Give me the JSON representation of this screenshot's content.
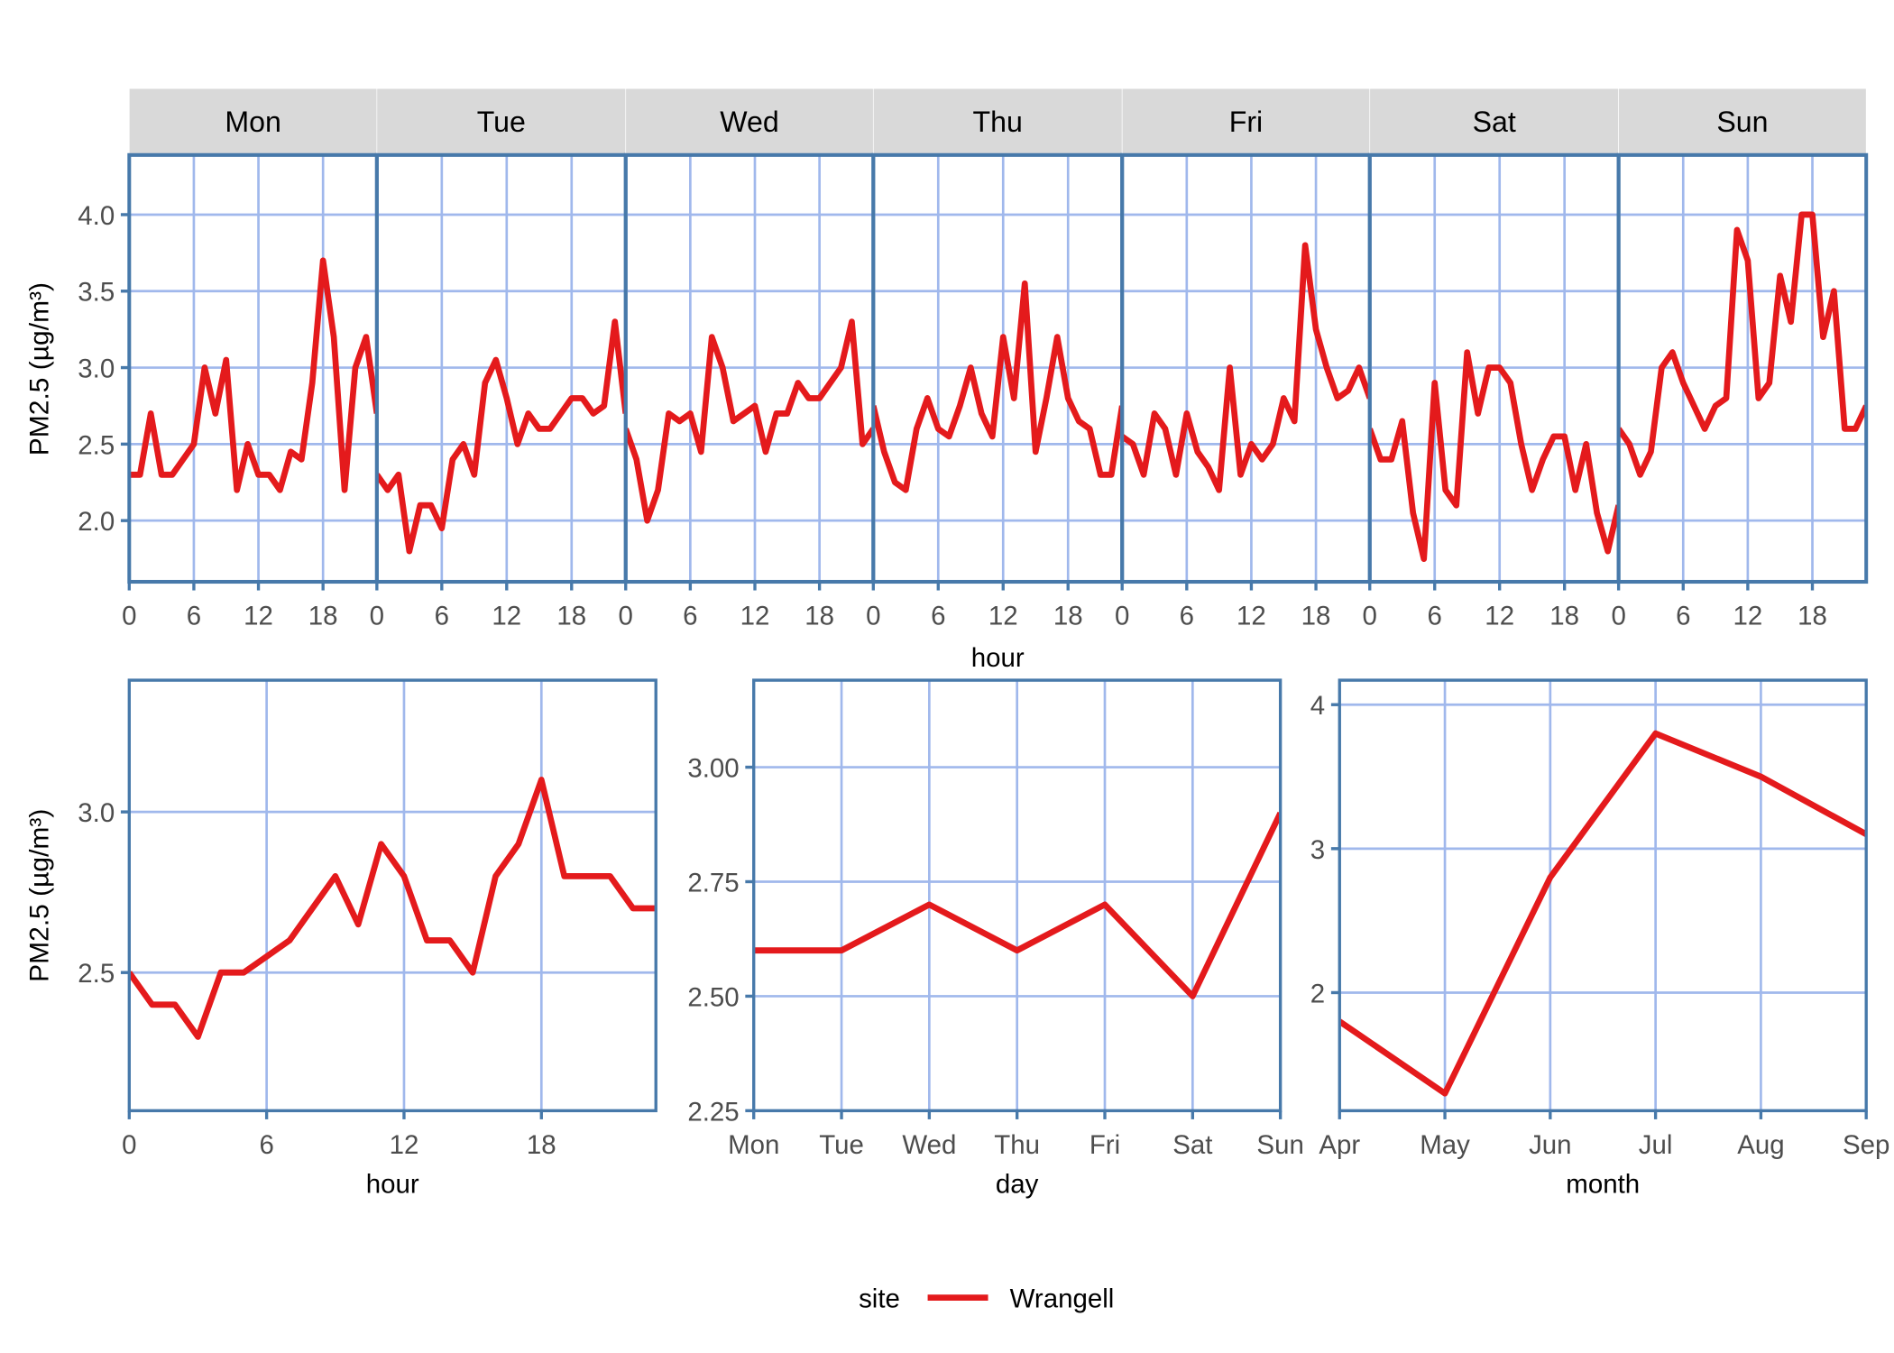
{
  "colors": {
    "line": "#E41A1C",
    "border": "#4779AA",
    "grid": "#A0B8EC",
    "strip": "#D9D9D9",
    "tick_text": "#4D4D4D"
  },
  "legend": {
    "title": "site",
    "entries": [
      "Wrangell"
    ],
    "placement": "bottom"
  },
  "chart_data": [
    {
      "type": "line",
      "facet_by": "day",
      "facets": [
        "Mon",
        "Tue",
        "Wed",
        "Thu",
        "Fri",
        "Sat",
        "Sun"
      ],
      "xlabel": "hour",
      "ylabel": "PM2.5 (µg/m³)",
      "xlim": [
        0,
        23
      ],
      "ylim": [
        1.6,
        4.39
      ],
      "xticks": [
        "0",
        "6",
        "12",
        "18"
      ],
      "xtick_values": [
        0,
        6,
        12,
        18
      ],
      "yticks": [
        "2.0",
        "2.5",
        "3.0",
        "3.5",
        "4.0"
      ],
      "ytick_values": [
        2.0,
        2.5,
        3.0,
        3.5,
        4.0
      ],
      "grid": true,
      "series": [
        {
          "name": "Wrangell",
          "values": {
            "Mon": [
              2.3,
              2.3,
              2.7,
              2.3,
              2.3,
              2.4,
              2.5,
              3.0,
              2.7,
              3.05,
              2.2,
              2.5,
              2.3,
              2.3,
              2.2,
              2.45,
              2.4,
              2.9,
              3.7,
              3.2,
              2.2,
              3.0,
              3.2,
              2.7
            ],
            "Tue": [
              2.3,
              2.2,
              2.3,
              1.8,
              2.1,
              2.1,
              1.95,
              2.4,
              2.5,
              2.3,
              2.9,
              3.05,
              2.8,
              2.5,
              2.7,
              2.6,
              2.6,
              2.7,
              2.8,
              2.8,
              2.7,
              2.75,
              3.3,
              2.7
            ],
            "Wed": [
              2.6,
              2.4,
              2.0,
              2.2,
              2.7,
              2.65,
              2.7,
              2.45,
              3.2,
              3.0,
              2.65,
              2.7,
              2.75,
              2.45,
              2.7,
              2.7,
              2.9,
              2.8,
              2.8,
              2.9,
              3.0,
              3.3,
              2.5,
              2.6
            ],
            "Thu": [
              2.75,
              2.45,
              2.25,
              2.2,
              2.6,
              2.8,
              2.6,
              2.55,
              2.75,
              3.0,
              2.7,
              2.55,
              3.2,
              2.8,
              3.55,
              2.45,
              2.8,
              3.2,
              2.8,
              2.65,
              2.6,
              2.3,
              2.3,
              2.75
            ],
            "Fri": [
              2.55,
              2.5,
              2.3,
              2.7,
              2.6,
              2.3,
              2.7,
              2.45,
              2.35,
              2.2,
              3.0,
              2.3,
              2.5,
              2.4,
              2.5,
              2.8,
              2.65,
              3.8,
              3.25,
              3.0,
              2.8,
              2.85,
              3.0,
              2.8
            ],
            "Sat": [
              2.6,
              2.4,
              2.4,
              2.65,
              2.05,
              1.75,
              2.9,
              2.2,
              2.1,
              3.1,
              2.7,
              3.0,
              3.0,
              2.9,
              2.5,
              2.2,
              2.4,
              2.55,
              2.55,
              2.2,
              2.5,
              2.05,
              1.8,
              2.1
            ],
            "Sun": [
              2.6,
              2.5,
              2.3,
              2.45,
              3.0,
              3.1,
              2.9,
              2.75,
              2.6,
              2.75,
              2.8,
              3.9,
              3.7,
              2.8,
              2.9,
              3.6,
              3.3,
              4.0,
              4.0,
              3.2,
              3.5,
              2.6,
              2.6,
              2.75
            ]
          }
        }
      ]
    },
    {
      "type": "line",
      "xlabel": "hour",
      "ylabel": "PM2.5 (µg/m³)",
      "xlim": [
        0,
        23
      ],
      "ylim": [
        2.07,
        3.41
      ],
      "xticks": [
        "0",
        "6",
        "12",
        "18"
      ],
      "xtick_values": [
        0,
        6,
        12,
        18
      ],
      "yticks": [
        "2.5",
        "3.0"
      ],
      "ytick_values": [
        2.5,
        3.0
      ],
      "grid": true,
      "x": [
        0,
        1,
        2,
        3,
        4,
        5,
        6,
        7,
        8,
        9,
        10,
        11,
        12,
        13,
        14,
        15,
        16,
        17,
        18,
        19,
        20,
        21,
        22,
        23
      ],
      "series": [
        {
          "name": "Wrangell",
          "values": [
            2.5,
            2.4,
            2.4,
            2.3,
            2.5,
            2.5,
            2.55,
            2.6,
            2.7,
            2.8,
            2.65,
            2.9,
            2.8,
            2.6,
            2.6,
            2.5,
            2.8,
            2.9,
            3.1,
            2.8,
            2.8,
            2.8,
            2.7,
            2.7
          ]
        }
      ]
    },
    {
      "type": "line",
      "xlabel": "day",
      "ylabel": "",
      "categories": [
        "Mon",
        "Tue",
        "Wed",
        "Thu",
        "Fri",
        "Sat",
        "Sun"
      ],
      "ylim": [
        2.25,
        3.19
      ],
      "yticks": [
        "2.25",
        "2.50",
        "2.75",
        "3.00"
      ],
      "ytick_values": [
        2.25,
        2.5,
        2.75,
        3.0
      ],
      "grid": true,
      "series": [
        {
          "name": "Wrangell",
          "values": [
            2.6,
            2.6,
            2.7,
            2.6,
            2.7,
            2.5,
            2.9
          ]
        }
      ]
    },
    {
      "type": "line",
      "xlabel": "month",
      "ylabel": "",
      "categories": [
        "Apr",
        "May",
        "Jun",
        "Jul",
        "Aug",
        "Sep"
      ],
      "ylim": [
        1.18,
        4.17
      ],
      "yticks": [
        "2",
        "3",
        "4"
      ],
      "ytick_values": [
        2,
        3,
        4
      ],
      "grid": true,
      "series": [
        {
          "name": "Wrangell",
          "values": [
            1.8,
            1.3,
            2.8,
            3.8,
            3.5,
            3.1
          ]
        }
      ]
    }
  ]
}
